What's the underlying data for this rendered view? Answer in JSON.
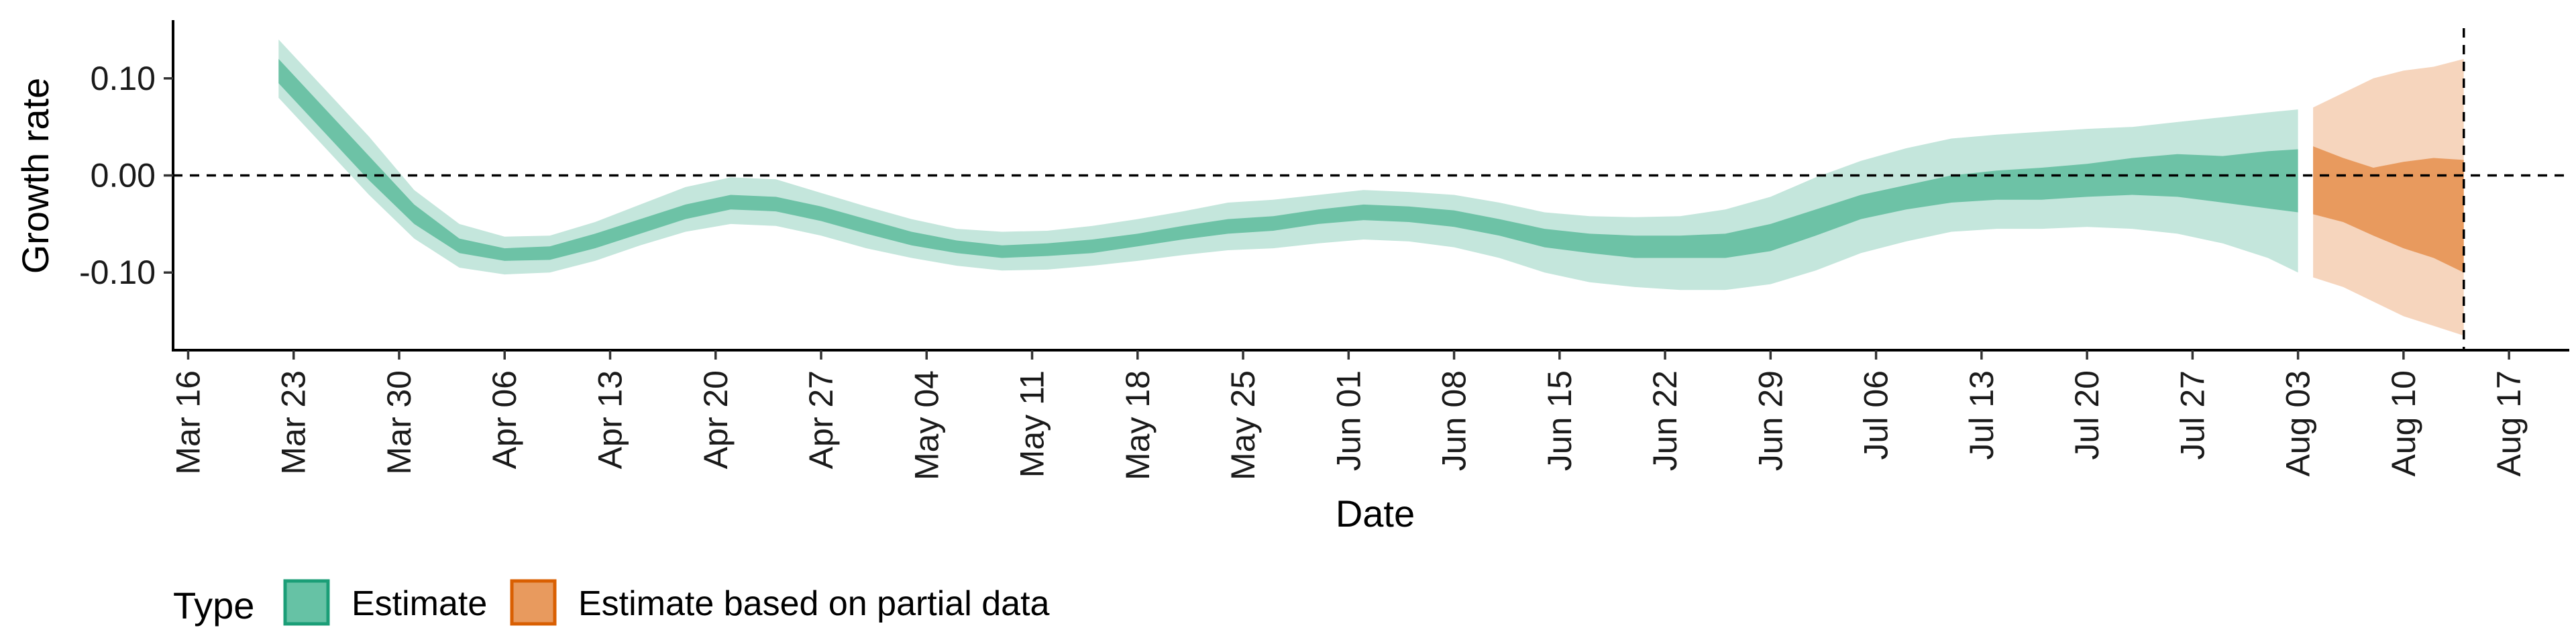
{
  "chart_data": {
    "type": "area",
    "title": "",
    "xlabel": "Date",
    "ylabel": "Growth rate",
    "x_tick_labels": [
      "Mar 16",
      "Mar 23",
      "Mar 30",
      "Apr 06",
      "Apr 13",
      "Apr 20",
      "Apr 27",
      "May 04",
      "May 11",
      "May 18",
      "May 25",
      "Jun 01",
      "Jun 08",
      "Jun 15",
      "Jun 22",
      "Jun 29",
      "Jul 06",
      "Jul 13",
      "Jul 20",
      "Jul 27",
      "Aug 03",
      "Aug 10",
      "Aug 17"
    ],
    "y_tick_labels": [
      "0.10",
      "0.00",
      "-0.10"
    ],
    "y_ticks": [
      0.1,
      0.0,
      -0.1
    ],
    "xlim": [
      "2020-03-15",
      "2020-08-21"
    ],
    "ylim": [
      -0.18,
      0.16
    ],
    "reference_lines": [
      {
        "axis": "y",
        "value": 0.0,
        "style": "dashed"
      },
      {
        "axis": "x",
        "value": "2020-08-14",
        "style": "dashed"
      }
    ],
    "legend": {
      "title": "Type",
      "position": "bottom-left",
      "entries": [
        {
          "label": "Estimate",
          "color": "#66c2a5",
          "border": "#1b9e77"
        },
        {
          "label": "Estimate based on partial data",
          "color": "#e89a5e",
          "border": "#d95f02"
        }
      ]
    },
    "colors": {
      "estimate_outer": "#c4e6dc",
      "estimate_inner": "#6dc2a6",
      "partial_outer": "#f6d5bd",
      "partial_inner": "#e89a5e"
    },
    "series": [
      {
        "name": "Estimate",
        "x": [
          "2020-03-22",
          "2020-03-25",
          "2020-03-28",
          "2020-03-31",
          "2020-04-03",
          "2020-04-06",
          "2020-04-09",
          "2020-04-12",
          "2020-04-15",
          "2020-04-18",
          "2020-04-21",
          "2020-04-24",
          "2020-04-27",
          "2020-04-30",
          "2020-05-03",
          "2020-05-06",
          "2020-05-09",
          "2020-05-12",
          "2020-05-15",
          "2020-05-18",
          "2020-05-21",
          "2020-05-24",
          "2020-05-27",
          "2020-05-30",
          "2020-06-02",
          "2020-06-05",
          "2020-06-08",
          "2020-06-11",
          "2020-06-14",
          "2020-06-17",
          "2020-06-20",
          "2020-06-23",
          "2020-06-26",
          "2020-06-29",
          "2020-07-02",
          "2020-07-05",
          "2020-07-08",
          "2020-07-11",
          "2020-07-14",
          "2020-07-17",
          "2020-07-20",
          "2020-07-23",
          "2020-07-26",
          "2020-07-29",
          "2020-08-01",
          "2020-08-03"
        ],
        "inner_upper": [
          0.12,
          0.07,
          0.02,
          -0.03,
          -0.065,
          -0.075,
          -0.073,
          -0.06,
          -0.045,
          -0.03,
          -0.02,
          -0.022,
          -0.032,
          -0.045,
          -0.058,
          -0.067,
          -0.072,
          -0.07,
          -0.066,
          -0.06,
          -0.052,
          -0.045,
          -0.042,
          -0.035,
          -0.03,
          -0.032,
          -0.036,
          -0.045,
          -0.055,
          -0.06,
          -0.062,
          -0.062,
          -0.06,
          -0.05,
          -0.035,
          -0.02,
          -0.01,
          0.0,
          0.005,
          0.008,
          0.012,
          0.018,
          0.022,
          0.02,
          0.025,
          0.027
        ],
        "inner_lower": [
          0.095,
          0.045,
          -0.005,
          -0.05,
          -0.08,
          -0.088,
          -0.087,
          -0.075,
          -0.06,
          -0.045,
          -0.035,
          -0.037,
          -0.047,
          -0.06,
          -0.072,
          -0.08,
          -0.085,
          -0.083,
          -0.08,
          -0.073,
          -0.066,
          -0.06,
          -0.057,
          -0.05,
          -0.046,
          -0.048,
          -0.053,
          -0.062,
          -0.074,
          -0.08,
          -0.085,
          -0.085,
          -0.085,
          -0.078,
          -0.062,
          -0.045,
          -0.035,
          -0.028,
          -0.025,
          -0.025,
          -0.022,
          -0.02,
          -0.022,
          -0.028,
          -0.034,
          -0.038
        ],
        "outer_upper": [
          0.14,
          0.09,
          0.04,
          -0.015,
          -0.05,
          -0.063,
          -0.062,
          -0.048,
          -0.03,
          -0.012,
          -0.002,
          -0.004,
          -0.018,
          -0.032,
          -0.045,
          -0.055,
          -0.058,
          -0.057,
          -0.052,
          -0.045,
          -0.037,
          -0.028,
          -0.025,
          -0.02,
          -0.015,
          -0.017,
          -0.02,
          -0.028,
          -0.038,
          -0.042,
          -0.043,
          -0.042,
          -0.035,
          -0.022,
          -0.002,
          0.015,
          0.028,
          0.038,
          0.042,
          0.045,
          0.048,
          0.05,
          0.055,
          0.06,
          0.065,
          0.068
        ],
        "outer_lower": [
          0.08,
          0.03,
          -0.02,
          -0.065,
          -0.095,
          -0.102,
          -0.1,
          -0.088,
          -0.072,
          -0.058,
          -0.05,
          -0.052,
          -0.062,
          -0.075,
          -0.085,
          -0.093,
          -0.098,
          -0.097,
          -0.093,
          -0.088,
          -0.082,
          -0.077,
          -0.075,
          -0.07,
          -0.066,
          -0.068,
          -0.074,
          -0.085,
          -0.1,
          -0.11,
          -0.115,
          -0.118,
          -0.118,
          -0.112,
          -0.098,
          -0.08,
          -0.068,
          -0.058,
          -0.055,
          -0.055,
          -0.053,
          -0.055,
          -0.06,
          -0.07,
          -0.085,
          -0.1
        ]
      },
      {
        "name": "Estimate based on partial data",
        "x": [
          "2020-08-04",
          "2020-08-06",
          "2020-08-08",
          "2020-08-10",
          "2020-08-12",
          "2020-08-14"
        ],
        "inner_upper": [
          0.03,
          0.018,
          0.008,
          0.014,
          0.018,
          0.016
        ],
        "inner_lower": [
          -0.04,
          -0.048,
          -0.062,
          -0.075,
          -0.085,
          -0.1
        ],
        "outer_upper": [
          0.07,
          0.085,
          0.1,
          0.108,
          0.112,
          0.12
        ],
        "outer_lower": [
          -0.105,
          -0.115,
          -0.13,
          -0.145,
          -0.155,
          -0.165
        ]
      }
    ]
  }
}
